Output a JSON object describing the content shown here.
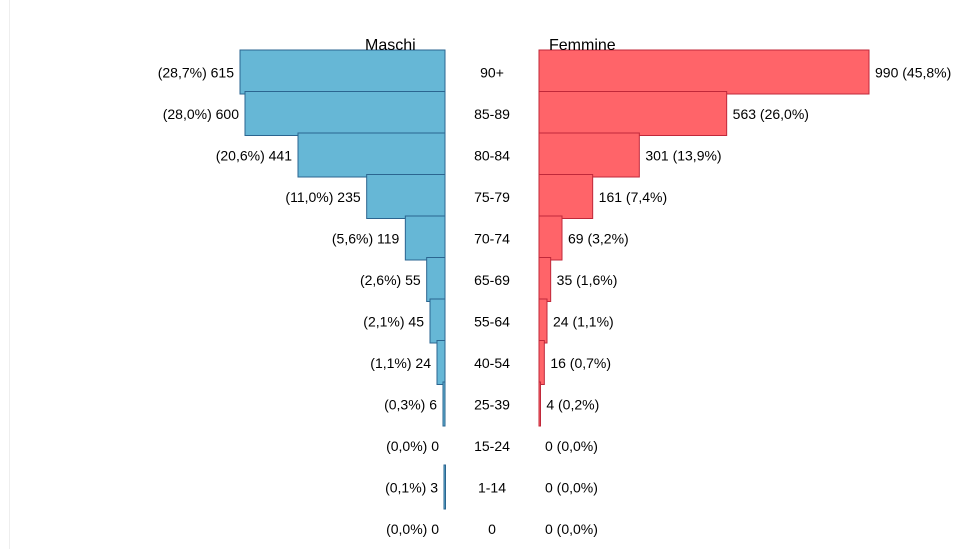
{
  "chart_data": {
    "type": "bar",
    "orientation": "horizontal",
    "layout": "population-pyramid",
    "categories": [
      "90+",
      "85-89",
      "80-84",
      "75-79",
      "70-74",
      "65-69",
      "55-64",
      "40-54",
      "25-39",
      "15-24",
      "1-14",
      "0"
    ],
    "series": [
      {
        "name": "Maschi",
        "side": "left",
        "color": "#66b7d6",
        "values": [
          615,
          600,
          441,
          235,
          119,
          55,
          45,
          24,
          6,
          0,
          3,
          0
        ],
        "percent_labels": [
          "(28,7%)",
          "(28,0%)",
          "(20,6%)",
          "(11,0%)",
          "(5,6%)",
          "(2,6%)",
          "(2,1%)",
          "(1,1%)",
          "(0,3%)",
          "(0,0%)",
          "(0,1%)",
          "(0,0%)"
        ],
        "labels": [
          "(28,7%) 615",
          "(28,0%) 600",
          "(20,6%) 441",
          "(11,0%) 235",
          "(5,6%) 119",
          "(2,6%) 55",
          "(2,1%) 45",
          "(1,1%) 24",
          "(0,3%) 6",
          "(0,0%) 0",
          "(0,1%) 3",
          "(0,0%) 0"
        ]
      },
      {
        "name": "Femmine",
        "side": "right",
        "color": "#ff6469",
        "values": [
          990,
          563,
          301,
          161,
          69,
          35,
          24,
          16,
          4,
          0,
          0,
          0
        ],
        "percent_labels": [
          "(45,8%)",
          "(26,0%)",
          "(13,9%)",
          "(7,4%)",
          "(3,2%)",
          "(1,6%)",
          "(1,1%)",
          "(0,7%)",
          "(0,2%)",
          "(0,0%)",
          "(0,0%)",
          "(0,0%)"
        ],
        "labels": [
          "990 (45,8%)",
          "563 (26,0%)",
          "301 (13,9%)",
          "161 (7,4%)",
          "69 (3,2%)",
          "35 (1,6%)",
          "24 (1,1%)",
          "16 (0,7%)",
          "4 (0,2%)",
          "0 (0,0%)",
          "0 (0,0%)",
          "0 (0,0%)"
        ]
      }
    ],
    "title": "",
    "xlabel": "",
    "ylabel": "",
    "xlim": [
      0,
      990
    ],
    "grid": false,
    "legend": "top-center"
  }
}
